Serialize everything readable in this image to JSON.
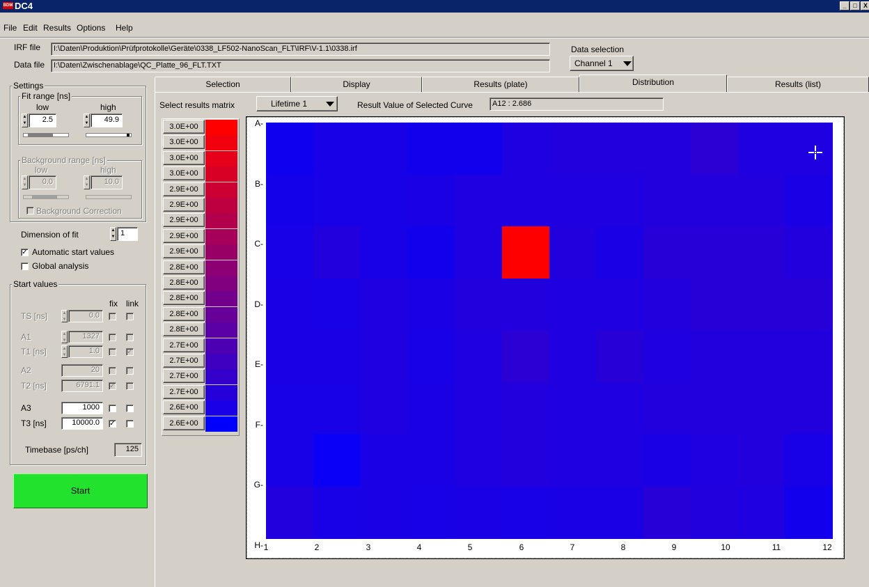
{
  "window": {
    "title": "DC4",
    "logo_text": "BDM",
    "buttons": {
      "minimize": "_",
      "maximize": "□",
      "close": "X"
    }
  },
  "menu": [
    {
      "label": "File",
      "u": "F"
    },
    {
      "label": "Edit",
      "u": "E"
    },
    {
      "label": "Results",
      "u": "R"
    },
    {
      "label": "Options",
      "u": "O"
    },
    {
      "label": "Help",
      "u": "H"
    }
  ],
  "files": {
    "irf_label": "IRF file",
    "irf_path": "I:\\Daten\\Produktion\\Prüfprotokolle\\Geräte\\0338_LF502-NanoScan_FLT\\IRF\\V-1.1\\0338.irf",
    "data_label": "Data file",
    "data_path": "I:\\Daten\\Zwischenablage\\QC_Platte_96_FLT.TXT",
    "data_selection_label": "Data selection",
    "data_selection_value": "Channel 1"
  },
  "settings": {
    "title": "Settings",
    "fit_range": {
      "title": "Fit range [ns]",
      "low_label": "low",
      "high_label": "high",
      "low": "2.5",
      "high": "49.9"
    },
    "bg_range": {
      "title": "Background range [ns]",
      "low_label": "low",
      "high_label": "high",
      "low": "0.0",
      "high": "10.0",
      "correction_label": "Background Correction"
    },
    "dimension_label": "Dimension of fit",
    "dimension_value": "1",
    "auto_start_label": "Automatic start values",
    "auto_start_checked": true,
    "global_label": "Global analysis",
    "global_checked": false
  },
  "start_values": {
    "title": "Start values",
    "fix_label": "fix",
    "link_label": "link",
    "rows": [
      {
        "label": "TS [ns]",
        "value": "0.0",
        "fix": "",
        "link": ""
      },
      {
        "label": "A1",
        "value": "1327",
        "fix": "",
        "link": ""
      },
      {
        "label": "T1 [ns]",
        "value": "1.0",
        "fix": "",
        "link": "✓"
      },
      {
        "label": "A2",
        "value": "20",
        "fix": "",
        "link": ""
      },
      {
        "label": "T2 [ns]",
        "value": "6791.1",
        "fix": "✓",
        "link": ""
      },
      {
        "label": "A3",
        "value": "1000",
        "fix": "",
        "link": ""
      },
      {
        "label": "T3 [ns]",
        "value": "10000.0",
        "fix": "✓",
        "link": ""
      }
    ],
    "timebase_label": "Timebase [ps/ch]",
    "timebase_value": "125"
  },
  "start_button": "Start",
  "tabs": [
    "Selection",
    "Display",
    "Results (plate)",
    "Distribution",
    "Results (list)"
  ],
  "active_tab": "Distribution",
  "results": {
    "select_label": "Select results matrix",
    "matrix_value": "Lifetime 1",
    "result_label": "Result Value of Selected Curve",
    "result_value": "A12 :  2.686"
  },
  "legend": [
    {
      "label": "3.0E+00",
      "color": "#ff0000"
    },
    {
      "label": "3.0E+00",
      "color": "#f2000d"
    },
    {
      "label": "3.0E+00",
      "color": "#e6001a"
    },
    {
      "label": "3.0E+00",
      "color": "#d90026"
    },
    {
      "label": "2.9E+00",
      "color": "#cc0033"
    },
    {
      "label": "2.9E+00",
      "color": "#bf0040"
    },
    {
      "label": "2.9E+00",
      "color": "#b3004d"
    },
    {
      "label": "2.9E+00",
      "color": "#a60059"
    },
    {
      "label": "2.9E+00",
      "color": "#990066"
    },
    {
      "label": "2.8E+00",
      "color": "#8c0073"
    },
    {
      "label": "2.8E+00",
      "color": "#800080"
    },
    {
      "label": "2.8E+00",
      "color": "#73008c"
    },
    {
      "label": "2.8E+00",
      "color": "#660099"
    },
    {
      "label": "2.8E+00",
      "color": "#5900a6"
    },
    {
      "label": "2.7E+00",
      "color": "#4d00b3"
    },
    {
      "label": "2.7E+00",
      "color": "#4000bf"
    },
    {
      "label": "2.7E+00",
      "color": "#3300cc"
    },
    {
      "label": "2.7E+00",
      "color": "#2600d9"
    },
    {
      "label": "2.6E+00",
      "color": "#1a00e6"
    },
    {
      "label": "2.6E+00",
      "color": "#0000ff"
    }
  ],
  "plate": {
    "rows": [
      "A",
      "B",
      "C",
      "D",
      "E",
      "F",
      "G",
      "H"
    ],
    "cols": [
      "1",
      "2",
      "3",
      "4",
      "5",
      "6",
      "7",
      "8",
      "9",
      "10",
      "11",
      "12"
    ],
    "cell_colors": [
      [
        "#0f00f0",
        "#1800e7",
        "#1800e7",
        "#1200ed",
        "#1200ed",
        "#1f00e0",
        "#2200dd",
        "#2200dd",
        "#2200dd",
        "#2a00d5",
        "#1f00e0",
        "#1f00e0"
      ],
      [
        "#1500ea",
        "#1800e7",
        "#1800e7",
        "#1a00e5",
        "#1f00e0",
        "#1f00e0",
        "#1f00e0",
        "#1f00e0",
        "#2200dd",
        "#2200dd",
        "#2200dd",
        "#1a00e5"
      ],
      [
        "#1800e7",
        "#2200dd",
        "#1800e7",
        "#1200ed",
        "#1f00e0",
        "#ff0000",
        "#2200dd",
        "#1a00e5",
        "#2700d8",
        "#2700d8",
        "#2700d8",
        "#2200dd"
      ],
      [
        "#1a00e5",
        "#1800e7",
        "#1f00e0",
        "#1a00e5",
        "#2200dd",
        "#2200dd",
        "#1f00e0",
        "#1f00e0",
        "#2200dd",
        "#2700d8",
        "#2700d8",
        "#2700d8"
      ],
      [
        "#1a00e5",
        "#1a00e5",
        "#1f00e0",
        "#1800e7",
        "#1f00e0",
        "#2a00d5",
        "#1f00e0",
        "#2700d8",
        "#1f00e0",
        "#2200dd",
        "#2200dd",
        "#2200dd"
      ],
      [
        "#1800e7",
        "#1800e7",
        "#1f00e0",
        "#1a00e5",
        "#1f00e0",
        "#2200dd",
        "#1f00e0",
        "#1f00e0",
        "#2200dd",
        "#2200dd",
        "#2200dd",
        "#2200dd"
      ],
      [
        "#1800e7",
        "#0a00f5",
        "#1a00e5",
        "#1a00e5",
        "#1f00e0",
        "#2200dd",
        "#1f00e0",
        "#1f00e0",
        "#1a00e5",
        "#1f00e0",
        "#2200dd",
        "#1800e7"
      ],
      [
        "#2200dd",
        "#1800e7",
        "#1a00e5",
        "#1800e7",
        "#1a00e5",
        "#1800e7",
        "#1a00e5",
        "#1a00e5",
        "#2700d8",
        "#2200dd",
        "#1f00e0",
        "#1200ed"
      ]
    ]
  }
}
